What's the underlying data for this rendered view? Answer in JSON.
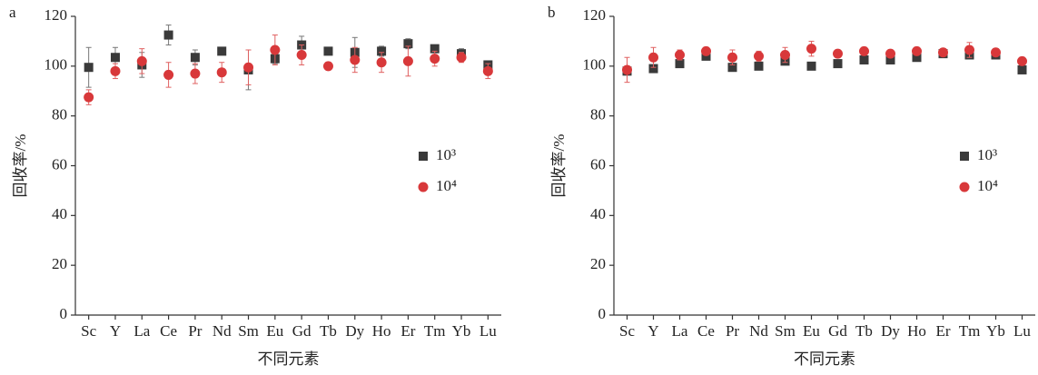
{
  "chart_data": [
    {
      "type": "scatter",
      "panel_label": "a",
      "xlabel": "不同元素",
      "ylabel": "回收率/%",
      "categories": [
        "Sc",
        "Y",
        "La",
        "Ce",
        "Pr",
        "Nd",
        "Sm",
        "Eu",
        "Gd",
        "Tb",
        "Dy",
        "Ho",
        "Er",
        "Tm",
        "Yb",
        "Lu"
      ],
      "ylim": [
        0,
        120
      ],
      "yticks": [
        0,
        20,
        40,
        60,
        80,
        100,
        120
      ],
      "series": [
        {
          "name": "10³",
          "marker": "square",
          "color": "#3a3a3a",
          "values": [
            99.5,
            103.5,
            100.5,
            112.5,
            103.5,
            106,
            98.5,
            103,
            108.5,
            106,
            105.5,
            106,
            109,
            107,
            105,
            100.5
          ],
          "errors": [
            8,
            4,
            5,
            4,
            3,
            1,
            8,
            2,
            3.5,
            1,
            6,
            2,
            2,
            1.5,
            2,
            1.5
          ]
        },
        {
          "name": "10⁴",
          "marker": "circle",
          "color": "#d8383a",
          "values": [
            87.5,
            98,
            102,
            96.5,
            97,
            97.5,
            99.5,
            106.5,
            104.5,
            100,
            102.5,
            101.5,
            102,
            103,
            103.5,
            98
          ],
          "errors": [
            3,
            3,
            5,
            5,
            4,
            4,
            7,
            6,
            4,
            1.5,
            5,
            4,
            6,
            3,
            2,
            3
          ]
        }
      ]
    },
    {
      "type": "scatter",
      "panel_label": "b",
      "xlabel": "不同元素",
      "ylabel": "回收率/%",
      "categories": [
        "Sc",
        "Y",
        "La",
        "Ce",
        "Pr",
        "Nd",
        "Sm",
        "Eu",
        "Gd",
        "Tb",
        "Dy",
        "Ho",
        "Er",
        "Tm",
        "Yb",
        "Lu"
      ],
      "ylim": [
        0,
        120
      ],
      "yticks": [
        0,
        20,
        40,
        60,
        80,
        100,
        120
      ],
      "series": [
        {
          "name": "10³",
          "marker": "square",
          "color": "#3a3a3a",
          "values": [
            98,
            99,
            101,
            104,
            99.5,
            100,
            102,
            100,
            101,
            102.5,
            102.5,
            103.5,
            105,
            104.5,
            104.5,
            98.5
          ],
          "errors": [
            1,
            1,
            1,
            1,
            1,
            1,
            1,
            1,
            1,
            1,
            1,
            1,
            1,
            1,
            1,
            1
          ]
        },
        {
          "name": "10⁴",
          "marker": "circle",
          "color": "#d8383a",
          "values": [
            98.5,
            103.5,
            104.5,
            106,
            103.5,
            104,
            104.5,
            107,
            105,
            106,
            105,
            106,
            105.5,
            106.5,
            105.5,
            102
          ],
          "errors": [
            5,
            4,
            2,
            1.5,
            3,
            2,
            3,
            3,
            1.5,
            1.5,
            1.5,
            1.5,
            1.5,
            3,
            1.5,
            1.5
          ]
        }
      ]
    }
  ]
}
